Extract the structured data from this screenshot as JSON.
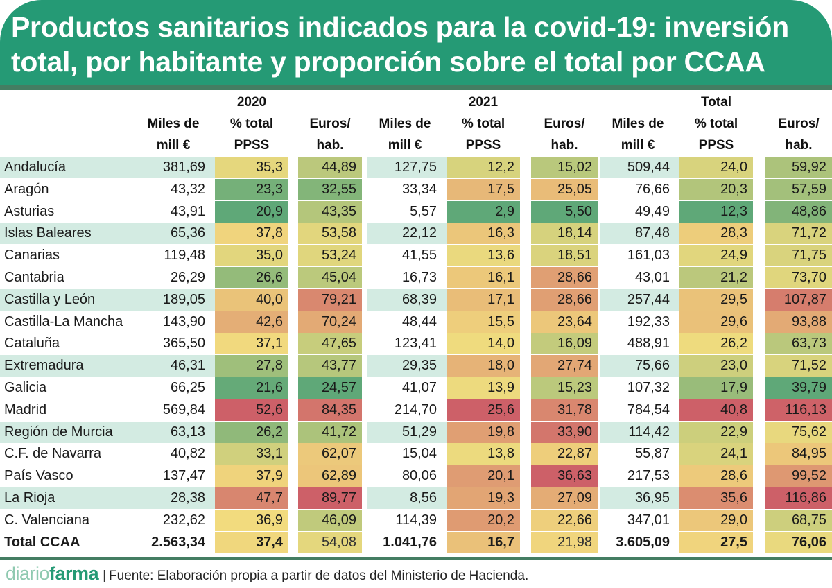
{
  "title_line1": "Productos sanitarios indicados para la covid-19: inversión",
  "title_line2": "total, por habitante y proporción sobre el total por CCAA",
  "footer": {
    "logo_part1": "diario",
    "logo_part2": "farma",
    "source": "Fuente: Elaboración propia a partir de datos del Ministerio de Hacienda."
  },
  "chart_data": {
    "type": "table",
    "title": "Productos sanitarios indicados para la covid-19: inversión total, por habitante y proporción sobre el total por CCAA",
    "groups": [
      "2020",
      "2021",
      "Total"
    ],
    "columns": [
      {
        "group": "2020",
        "line1": "Miles de",
        "line2": "mill €",
        "heat": false
      },
      {
        "group": "2020",
        "line1": "% total",
        "line2": "PPSS",
        "heat": true
      },
      {
        "group": "2020",
        "line1": "Euros/",
        "line2": "hab.",
        "heat": true
      },
      {
        "group": "2021",
        "line1": "Miles de",
        "line2": "mill €",
        "heat": false
      },
      {
        "group": "2021",
        "line1": "% total",
        "line2": "PPSS",
        "heat": true
      },
      {
        "group": "2021",
        "line1": "Euros/",
        "line2": "hab.",
        "heat": true
      },
      {
        "group": "Total",
        "line1": "Miles de",
        "line2": "mill €",
        "heat": false
      },
      {
        "group": "Total",
        "line1": "% total",
        "line2": "PPSS",
        "heat": true
      },
      {
        "group": "Total",
        "line1": "Euros/",
        "line2": "hab.",
        "heat": true
      }
    ],
    "rows": [
      {
        "name": "Andalucía",
        "values": [
          "381,69",
          "35,3",
          "44,89",
          "127,75",
          "12,2",
          "15,02",
          "509,44",
          "24,0",
          "59,92"
        ]
      },
      {
        "name": "Aragón",
        "values": [
          "43,32",
          "23,3",
          "32,55",
          "33,34",
          "17,5",
          "25,05",
          "76,66",
          "20,3",
          "57,59"
        ]
      },
      {
        "name": "Asturias",
        "values": [
          "43,91",
          "20,9",
          "43,35",
          "5,57",
          "2,9",
          "5,50",
          "49,49",
          "12,3",
          "48,86"
        ]
      },
      {
        "name": "Islas Baleares",
        "values": [
          "65,36",
          "37,8",
          "53,58",
          "22,12",
          "16,3",
          "18,14",
          "87,48",
          "28,3",
          "71,72"
        ]
      },
      {
        "name": "Canarias",
        "values": [
          "119,48",
          "35,0",
          "53,24",
          "41,55",
          "13,6",
          "18,51",
          "161,03",
          "24,9",
          "71,75"
        ]
      },
      {
        "name": "Cantabria",
        "values": [
          "26,29",
          "26,6",
          "45,04",
          "16,73",
          "16,1",
          "28,66",
          "43,01",
          "21,2",
          "73,70"
        ]
      },
      {
        "name": "Castilla y León",
        "values": [
          "189,05",
          "40,0",
          "79,21",
          "68,39",
          "17,1",
          "28,66",
          "257,44",
          "29,5",
          "107,87"
        ]
      },
      {
        "name": "Castilla-La Mancha",
        "values": [
          "143,90",
          "42,6",
          "70,24",
          "48,44",
          "15,5",
          "23,64",
          "192,33",
          "29,6",
          "93,88"
        ]
      },
      {
        "name": "Cataluña",
        "values": [
          "365,50",
          "37,1",
          "47,65",
          "123,41",
          "14,0",
          "16,09",
          "488,91",
          "26,2",
          "63,73"
        ]
      },
      {
        "name": "Extremadura",
        "values": [
          "46,31",
          "27,8",
          "43,77",
          "29,35",
          "18,0",
          "27,74",
          "75,66",
          "23,0",
          "71,52"
        ]
      },
      {
        "name": "Galicia",
        "values": [
          "66,25",
          "21,6",
          "24,57",
          "41,07",
          "13,9",
          "15,23",
          "107,32",
          "17,9",
          "39,79"
        ]
      },
      {
        "name": "Madrid",
        "values": [
          "569,84",
          "52,6",
          "84,35",
          "214,70",
          "25,6",
          "31,78",
          "784,54",
          "40,8",
          "116,13"
        ]
      },
      {
        "name": "Región de Murcia",
        "values": [
          "63,13",
          "26,2",
          "41,72",
          "51,29",
          "19,8",
          "33,90",
          "114,42",
          "22,9",
          "75,62"
        ]
      },
      {
        "name": "C.F. de Navarra",
        "values": [
          "40,82",
          "33,1",
          "62,07",
          "15,04",
          "13,8",
          "22,87",
          "55,87",
          "24,1",
          "84,95"
        ]
      },
      {
        "name": "País Vasco",
        "values": [
          "137,47",
          "37,9",
          "62,89",
          "80,06",
          "20,1",
          "36,63",
          "217,53",
          "28,6",
          "99,52"
        ]
      },
      {
        "name": "La Rioja",
        "values": [
          "28,38",
          "47,7",
          "89,77",
          "8,56",
          "19,3",
          "27,09",
          "36,95",
          "35,6",
          "116,86"
        ]
      },
      {
        "name": "C. Valenciana",
        "values": [
          "232,62",
          "36,9",
          "46,09",
          "114,39",
          "20,2",
          "22,66",
          "347,01",
          "29,0",
          "68,75"
        ]
      }
    ],
    "total_row": {
      "name": "Total CCAA",
      "values": [
        "2.563,34",
        "37,4",
        "54,08",
        "1.041,76",
        "16,7",
        "21,98",
        "3.605,09",
        "27,5",
        "76,06"
      ]
    },
    "heat_colors": {
      "low": "#5fa878",
      "mid": "#f2dc7e",
      "high": "#cd6068"
    }
  }
}
